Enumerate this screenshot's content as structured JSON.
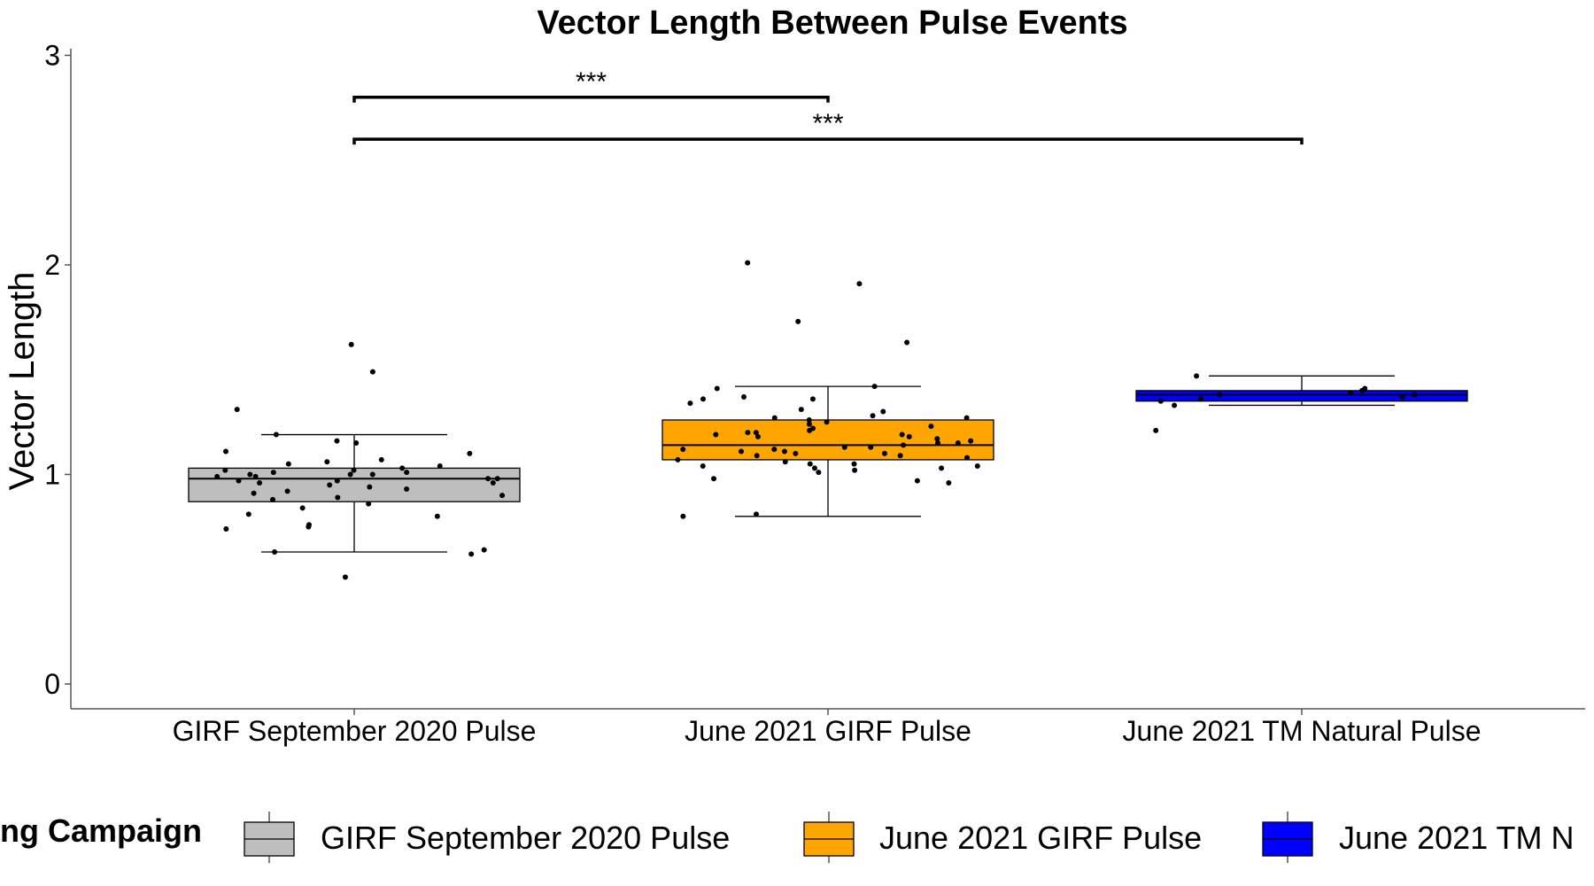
{
  "chart_data": {
    "type": "box",
    "title": "Vector Length Between Pulse Events",
    "xlabel": "",
    "ylabel": "Vector Length",
    "ylim": [
      0,
      3.15
    ],
    "yticks": [
      0,
      1,
      2,
      3
    ],
    "categories": [
      "GIRF September 2020 Pulse",
      "June 2021 GIRF Pulse",
      "June 2021 TM Natural Pulse"
    ],
    "series": [
      {
        "name": "GIRF September 2020 Pulse",
        "color": "#bebebe",
        "whisker_low": 0.63,
        "q1": 0.87,
        "median": 0.98,
        "q3": 1.03,
        "whisker_high": 1.19,
        "points": [
          1.62,
          1.49,
          1.31,
          1.19,
          1.16,
          1.15,
          1.11,
          1.1,
          1.07,
          1.06,
          1.05,
          1.04,
          1.03,
          1.02,
          1.02,
          1.01,
          1.01,
          1.0,
          1.0,
          1.0,
          0.99,
          0.99,
          0.98,
          0.98,
          0.97,
          0.97,
          0.96,
          0.96,
          0.95,
          0.94,
          0.93,
          0.92,
          0.91,
          0.9,
          0.89,
          0.88,
          0.86,
          0.84,
          0.81,
          0.8,
          0.76,
          0.75,
          0.74,
          0.64,
          0.63,
          0.62,
          0.51
        ]
      },
      {
        "name": "June 2021 GIRF Pulse",
        "color": "#ffa500",
        "whisker_low": 0.8,
        "q1": 1.07,
        "median": 1.14,
        "q3": 1.26,
        "whisker_high": 1.42,
        "points": [
          2.01,
          1.91,
          1.73,
          1.63,
          1.42,
          1.41,
          1.37,
          1.36,
          1.36,
          1.34,
          1.31,
          1.3,
          1.28,
          1.27,
          1.27,
          1.26,
          1.25,
          1.24,
          1.23,
          1.22,
          1.21,
          1.2,
          1.2,
          1.19,
          1.19,
          1.18,
          1.18,
          1.17,
          1.16,
          1.15,
          1.15,
          1.14,
          1.13,
          1.13,
          1.12,
          1.12,
          1.11,
          1.11,
          1.1,
          1.1,
          1.09,
          1.09,
          1.08,
          1.07,
          1.06,
          1.05,
          1.05,
          1.04,
          1.04,
          1.03,
          1.03,
          1.02,
          1.01,
          0.98,
          0.97,
          0.96,
          0.81,
          0.8
        ]
      },
      {
        "name": "June 2021 TM Natural Pulse",
        "color": "#0000ff",
        "whisker_low": 1.33,
        "q1": 1.35,
        "median": 1.38,
        "q3": 1.4,
        "whisker_high": 1.47,
        "points": [
          1.47,
          1.41,
          1.4,
          1.39,
          1.38,
          1.38,
          1.37,
          1.36,
          1.35,
          1.33,
          1.21
        ]
      }
    ],
    "significance": [
      {
        "from": 0,
        "to": 1,
        "label": "***",
        "y": 2.8
      },
      {
        "from": 0,
        "to": 2,
        "label": "***",
        "y": 2.6
      }
    ],
    "legend": {
      "title": "ng Campaign",
      "position": "bottom",
      "items": [
        "GIRF September 2020 Pulse",
        "June 2021 GIRF Pulse",
        "June 2021 TM N"
      ]
    },
    "grid": false
  }
}
